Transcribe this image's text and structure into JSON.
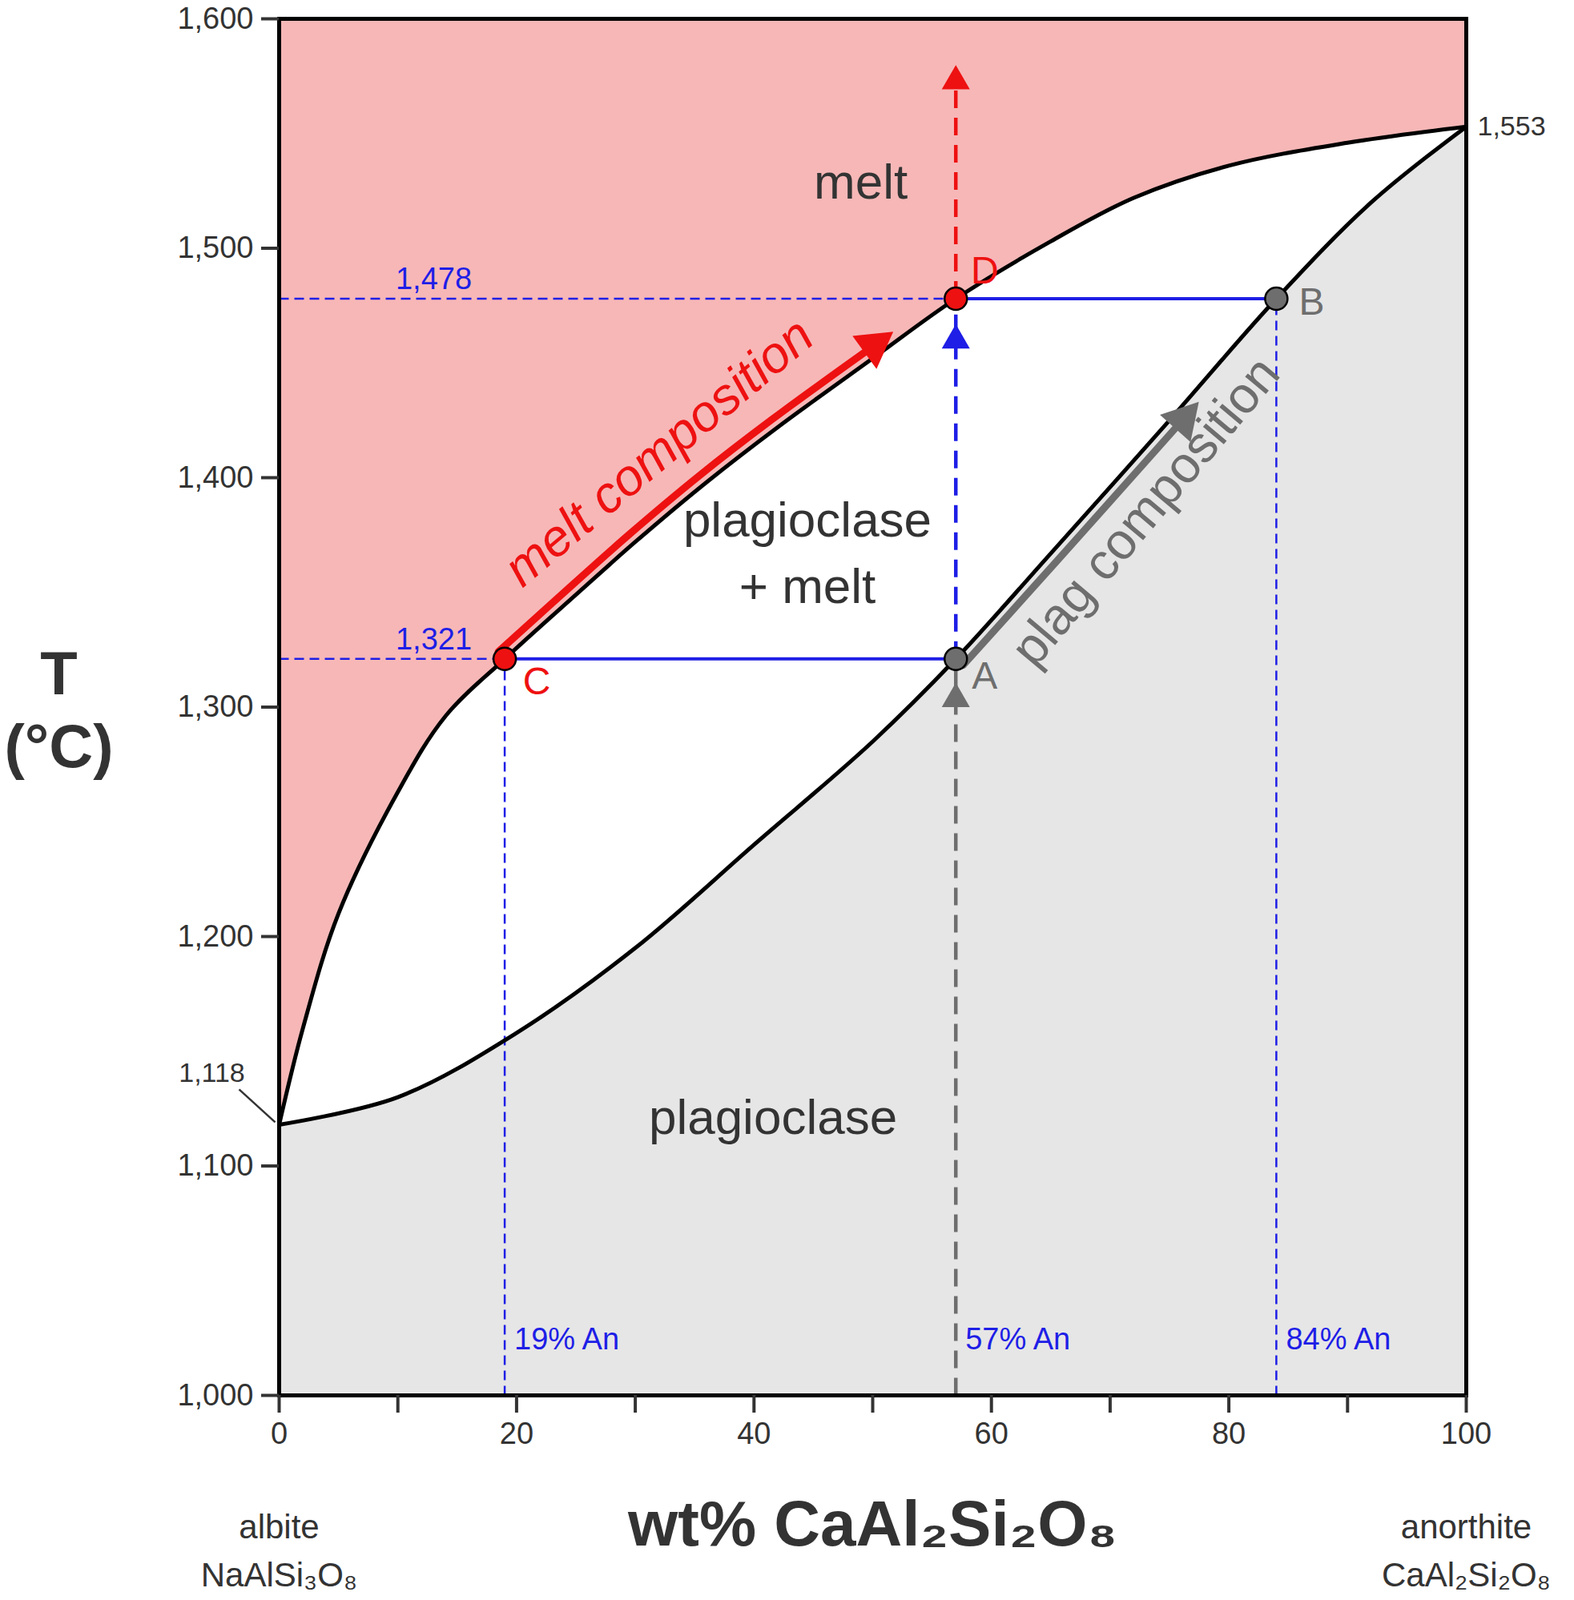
{
  "chart_data": {
    "type": "line",
    "xlabel": "wt% CaAl₂Si₂O₈",
    "ylabel": "T\n(°C)",
    "xlim": [
      0,
      100
    ],
    "xticks": [
      0,
      20,
      40,
      60,
      80,
      100
    ],
    "xminorticks": [
      10,
      30,
      50,
      70,
      90
    ],
    "ylim": [
      1000,
      1600
    ],
    "yticks": [
      {
        "value": 1000,
        "label": "1,000"
      },
      {
        "value": 1100,
        "label": "1,100"
      },
      {
        "value": 1200,
        "label": "1,200"
      },
      {
        "value": 1300,
        "label": "1,300"
      },
      {
        "value": 1400,
        "label": "1,400"
      },
      {
        "value": 1500,
        "label": "1,500"
      },
      {
        "value": 1600,
        "label": "1,600"
      }
    ],
    "series": [
      {
        "name": "melt composition",
        "color": "#ee1111",
        "x": [
          0,
          2,
          5,
          10,
          14,
          19,
          25,
          30,
          36,
          42,
          50,
          57,
          65,
          72,
          80,
          90,
          100
        ],
        "values": [
          1118,
          1160,
          1210,
          1263,
          1296,
          1321,
          1349,
          1372,
          1398,
          1422,
          1452,
          1478,
          1503,
          1522,
          1536,
          1546,
          1553
        ]
      },
      {
        "name": "plag composition",
        "color": "#6e6e6e",
        "x": [
          0,
          10,
          20,
          30,
          40,
          50,
          57,
          65,
          75,
          84,
          92,
          100
        ],
        "values": [
          1118,
          1130,
          1158,
          1195,
          1240,
          1285,
          1321,
          1367,
          1425,
          1478,
          1520,
          1553
        ]
      }
    ],
    "regions": [
      {
        "label": "melt",
        "color": "#f7b7b7"
      },
      {
        "label": "plagioclase\n+ melt"
      },
      {
        "label": "plagioclase",
        "color": "#e6e6e6"
      }
    ],
    "points": [
      {
        "name": "C",
        "phase": "melt composition",
        "x": 19,
        "y": 1321
      },
      {
        "name": "A",
        "phase": "plag composition",
        "x": 57,
        "y": 1321
      },
      {
        "name": "D",
        "phase": "melt composition",
        "x": 57,
        "y": 1478
      },
      {
        "name": "B",
        "phase": "plag composition",
        "x": 84,
        "y": 1478
      }
    ],
    "temperature_labels": [
      {
        "value": 1321,
        "label": "1,321"
      },
      {
        "value": 1478,
        "label": "1,478"
      }
    ],
    "composition_labels": [
      {
        "value": 19,
        "label": "19% An"
      },
      {
        "value": 57,
        "label": "57% An"
      },
      {
        "value": 84,
        "label": "84% An"
      }
    ],
    "endpoint_labels": [
      {
        "x": 0,
        "y": 1118,
        "label": "1,118"
      },
      {
        "x": 100,
        "y": 1553,
        "label": "1,553"
      }
    ],
    "endmembers": [
      {
        "x": 0,
        "label": "albite",
        "formula": "NaAlSi₃O₈"
      },
      {
        "x": 100,
        "label": "anorthite",
        "formula": "CaAl₂Si₂O₈"
      }
    ]
  }
}
